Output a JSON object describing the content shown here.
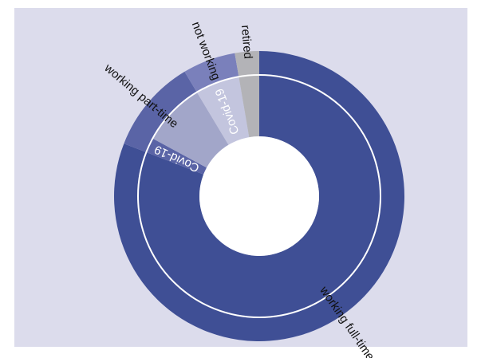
{
  "chart_data": {
    "type": "sunburst",
    "outer_ring": [
      {
        "label": "working full-time",
        "value": 80.9,
        "color": "#3f4f95"
      },
      {
        "label": "working part-time",
        "value": 10.5,
        "color": "#5a64a6"
      },
      {
        "label": "not working",
        "value": 5.9,
        "color": "#7a80bb"
      },
      {
        "label": "retired",
        "value": 2.7,
        "color": "#b3b3b7"
      }
    ],
    "inner_ring": [
      {
        "label": "",
        "value": 80.9,
        "color": "#3f4f95"
      },
      {
        "label": "Covid-19",
        "value": 2.0,
        "color": "#5a64a6"
      },
      {
        "label": "",
        "value": 8.5,
        "color": "#a2a6c9"
      },
      {
        "label": "Covid-19",
        "value": 5.9,
        "color": "#c3c5de"
      },
      {
        "label": "",
        "value": 2.7,
        "color": "#b3b3b7"
      }
    ],
    "legend": "none",
    "grid": false
  }
}
